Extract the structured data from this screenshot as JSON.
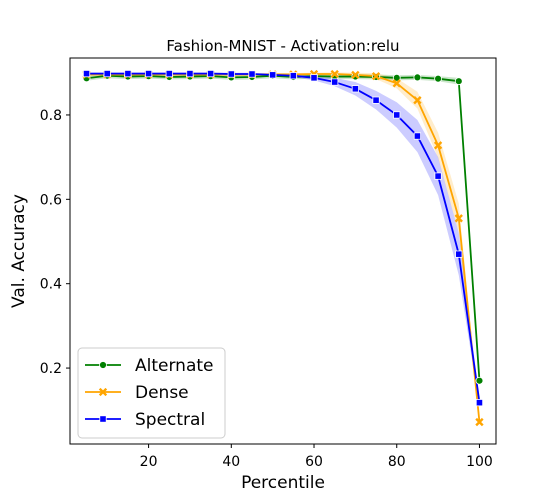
{
  "chart_data": {
    "type": "line",
    "title": "Fashion-MNIST - Activation:relu",
    "xlabel": "Percentile",
    "ylabel": "Val. Accuracy",
    "xlim": [
      1,
      104
    ],
    "ylim": [
      0.02,
      0.935
    ],
    "xticks": [
      20,
      40,
      60,
      80,
      100
    ],
    "yticks": [
      0.2,
      0.4,
      0.6,
      0.8
    ],
    "grid": false,
    "legend_position": "lower-left",
    "x": [
      5,
      10,
      15,
      20,
      25,
      30,
      35,
      40,
      45,
      50,
      55,
      60,
      65,
      70,
      75,
      80,
      85,
      90,
      95,
      100
    ],
    "series": [
      {
        "name": "Alternate",
        "color": "#008000",
        "marker": "circle",
        "values": [
          0.887,
          0.893,
          0.891,
          0.892,
          0.89,
          0.891,
          0.892,
          0.889,
          0.89,
          0.893,
          0.89,
          0.892,
          0.891,
          0.891,
          0.89,
          0.888,
          0.889,
          0.886,
          0.88,
          0.17
        ],
        "band": [
          0.006,
          0.006,
          0.006,
          0.006,
          0.006,
          0.006,
          0.006,
          0.006,
          0.006,
          0.006,
          0.006,
          0.006,
          0.006,
          0.006,
          0.006,
          0.006,
          0.006,
          0.006,
          0.008,
          0.01
        ]
      },
      {
        "name": "Dense",
        "color": "#FFA500",
        "marker": "x",
        "values": [
          0.896,
          0.896,
          0.896,
          0.896,
          0.896,
          0.896,
          0.896,
          0.896,
          0.896,
          0.896,
          0.896,
          0.897,
          0.897,
          0.895,
          0.892,
          0.875,
          0.835,
          0.728,
          0.555,
          0.072
        ],
        "band": [
          0.003,
          0.003,
          0.003,
          0.003,
          0.003,
          0.003,
          0.003,
          0.003,
          0.003,
          0.003,
          0.003,
          0.003,
          0.004,
          0.005,
          0.007,
          0.012,
          0.02,
          0.03,
          0.035,
          0.01
        ]
      },
      {
        "name": "Spectral",
        "color": "#0000FF",
        "marker": "square",
        "values": [
          0.898,
          0.898,
          0.898,
          0.898,
          0.898,
          0.898,
          0.898,
          0.897,
          0.897,
          0.895,
          0.893,
          0.888,
          0.878,
          0.862,
          0.835,
          0.8,
          0.75,
          0.655,
          0.47,
          0.118
        ],
        "band": [
          0.003,
          0.003,
          0.003,
          0.003,
          0.003,
          0.003,
          0.003,
          0.003,
          0.003,
          0.003,
          0.004,
          0.006,
          0.01,
          0.016,
          0.022,
          0.03,
          0.038,
          0.045,
          0.05,
          0.01
        ]
      }
    ]
  }
}
